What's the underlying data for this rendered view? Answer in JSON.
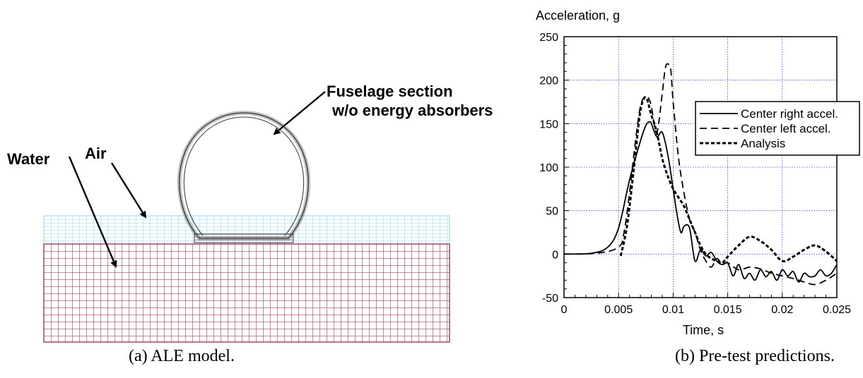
{
  "figure_a": {
    "caption": "(a) ALE model.",
    "labels": {
      "water": "Water",
      "air": "Air",
      "fuselage_line1": "Fuselage section",
      "fuselage_line2": "w/o energy absorbers"
    },
    "colors": {
      "water_mesh": "#8b1a4a",
      "air_mesh": "#8fd4e8",
      "fuselage_mesh": "#555555"
    }
  },
  "figure_b": {
    "caption": "(b) Pre-test predictions."
  },
  "chart_data": {
    "type": "line",
    "title": "",
    "xlabel": "Time, s",
    "ylabel": "Acceleration, g",
    "xlim": [
      0,
      0.025
    ],
    "ylim": [
      -50,
      250
    ],
    "xticks": [
      "0",
      "0.005",
      "0.01",
      "0.015",
      "0.02",
      "0.025"
    ],
    "yticks": [
      "250",
      "200",
      "150",
      "100",
      "50",
      "0",
      "-50"
    ],
    "grid": true,
    "grid_color": "#3344cc",
    "legend_position": "top-right",
    "series": [
      {
        "name": "Center right accel.",
        "style": "solid",
        "color": "#000000",
        "x": [
          0,
          0.0025,
          0.004,
          0.005,
          0.006,
          0.007,
          0.0075,
          0.0078,
          0.008,
          0.0085,
          0.009,
          0.0095,
          0.01,
          0.0103,
          0.0107,
          0.011,
          0.0115,
          0.012,
          0.0125,
          0.013,
          0.0135,
          0.014,
          0.0145,
          0.015,
          0.0155,
          0.016,
          0.0165,
          0.017,
          0.0175,
          0.018,
          0.0185,
          0.019,
          0.0195,
          0.02,
          0.0205,
          0.021,
          0.0215,
          0.022,
          0.0225,
          0.023,
          0.0235,
          0.024,
          0.0245,
          0.025
        ],
        "y": [
          0,
          1,
          8,
          30,
          85,
          130,
          148,
          152,
          150,
          135,
          140,
          115,
          75,
          50,
          25,
          32,
          30,
          -8,
          5,
          -2,
          2,
          -8,
          -12,
          -10,
          -25,
          -12,
          -28,
          -22,
          -30,
          -18,
          -26,
          -20,
          -30,
          -18,
          -25,
          -20,
          -32,
          -22,
          -26,
          -25,
          -18,
          -25,
          -22,
          -12
        ]
      },
      {
        "name": "Center left accel.",
        "style": "dashed",
        "color": "#000000",
        "x": [
          0,
          0.003,
          0.005,
          0.0055,
          0.006,
          0.0065,
          0.007,
          0.0075,
          0.0078,
          0.008,
          0.0085,
          0.009,
          0.0093,
          0.0096,
          0.0098,
          0.01,
          0.0105,
          0.011,
          0.0115,
          0.012,
          0.0125,
          0.013,
          0.0135,
          0.014,
          0.0145,
          0.015,
          0.016,
          0.017,
          0.018,
          0.019,
          0.02,
          0.021,
          0.022,
          0.023,
          0.024,
          0.025
        ],
        "y": [
          0,
          1,
          8,
          25,
          70,
          125,
          170,
          182,
          178,
          170,
          140,
          185,
          215,
          218,
          210,
          175,
          110,
          70,
          40,
          25,
          5,
          -8,
          -15,
          -5,
          -12,
          -10,
          -18,
          -15,
          -17,
          -22,
          -25,
          -28,
          -32,
          -35,
          -30,
          -22
        ]
      },
      {
        "name": "Analysis",
        "style": "short-dash",
        "color": "#000000",
        "x": [
          0.0052,
          0.0058,
          0.0065,
          0.007,
          0.0075,
          0.008,
          0.0085,
          0.009,
          0.0095,
          0.01,
          0.0105,
          0.011,
          0.0115,
          0.012,
          0.0125,
          0.013,
          0.0135,
          0.014,
          0.0145,
          0.015,
          0.016,
          0.017,
          0.018,
          0.019,
          0.02,
          0.021,
          0.022,
          0.023,
          0.024,
          0.025
        ],
        "y": [
          -2,
          35,
          110,
          165,
          180,
          160,
          140,
          110,
          90,
          75,
          65,
          55,
          40,
          25,
          10,
          0,
          -5,
          -8,
          -10,
          -3,
          10,
          20,
          15,
          5,
          -8,
          -3,
          5,
          10,
          3,
          -8
        ]
      }
    ]
  }
}
